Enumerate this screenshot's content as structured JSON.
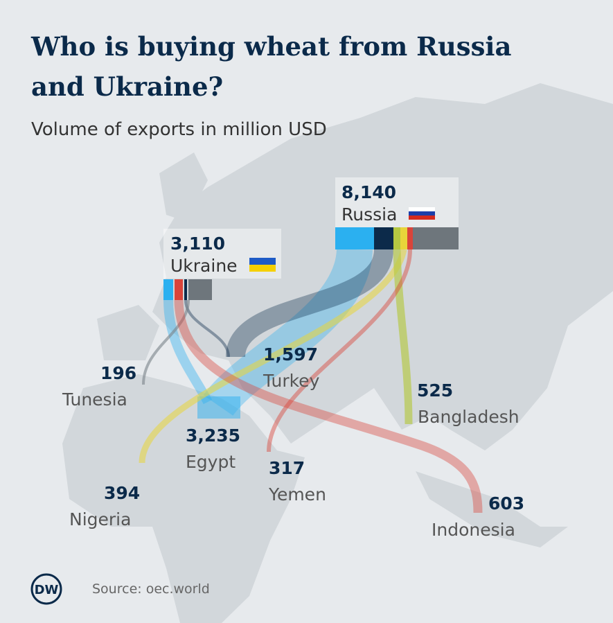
{
  "header": {
    "title_lines": [
      "Who is buying wheat from Russia",
      "and Ukraine?"
    ],
    "subtitle": "Volume of exports in million USD"
  },
  "exporters": [
    {
      "name": "Russia",
      "value": "8,140"
    },
    {
      "name": "Ukraine",
      "value": "3,110"
    }
  ],
  "importers": [
    {
      "name": "Tunesia",
      "value": "196"
    },
    {
      "name": "Turkey",
      "value": "1,597"
    },
    {
      "name": "Egypt",
      "value": "3,235"
    },
    {
      "name": "Nigeria",
      "value": "394"
    },
    {
      "name": "Yemen",
      "value": "317"
    },
    {
      "name": "Bangladesh",
      "value": "525"
    },
    {
      "name": "Indonesia",
      "value": "603"
    }
  ],
  "footer": {
    "logo": "DW",
    "source": "Source: oec.world"
  }
}
